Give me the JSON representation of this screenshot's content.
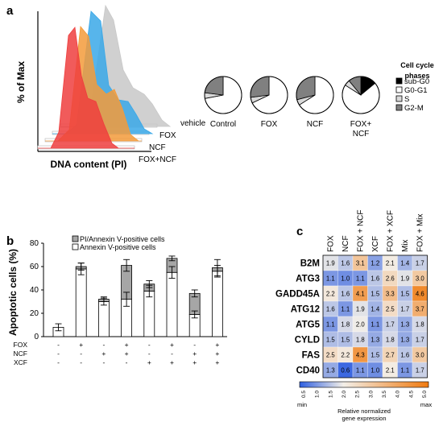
{
  "panels": {
    "a": "a",
    "b": "b",
    "c": "c"
  },
  "chart_data": [
    {
      "type": "histogram",
      "panel": "a",
      "xlabel": "DNA content (PI)",
      "ylabel": "% of Max",
      "series": [
        {
          "name": "vehicle",
          "color": "#c8c8c8"
        },
        {
          "name": "FOX",
          "color": "#3aa8e8"
        },
        {
          "name": "NCF",
          "color": "#f39b3b"
        },
        {
          "name": "FOX+NCF",
          "color": "#ee3e3e"
        }
      ]
    },
    {
      "type": "pie",
      "panel": "a",
      "legend_title": [
        "Cell cycle",
        "phases"
      ],
      "phases": [
        {
          "name": "sub-G0",
          "color": "#000000"
        },
        {
          "name": "G0-G1",
          "color": "#ffffff"
        },
        {
          "name": "S",
          "color": "#d9d9d9"
        },
        {
          "name": "G2-M",
          "color": "#808080"
        }
      ],
      "pies": [
        {
          "label": [
            "Control"
          ],
          "values": [
            0,
            72,
            5,
            23
          ]
        },
        {
          "label": [
            "FOX"
          ],
          "values": [
            0,
            68,
            5,
            27
          ]
        },
        {
          "label": [
            "NCF"
          ],
          "values": [
            0,
            66,
            5,
            29
          ]
        },
        {
          "label": [
            "FOX+",
            "NCF"
          ],
          "values": [
            14,
            70,
            5,
            11
          ]
        }
      ]
    },
    {
      "type": "bar",
      "panel": "b",
      "ylabel": "Apoptotic cells (%)",
      "ylim": [
        0,
        80
      ],
      "yticks": [
        0,
        20,
        40,
        60,
        80
      ],
      "legend": [
        "PI/Annexin V-positive cells",
        "Annexin V-positive cells"
      ],
      "series_colors": {
        "pi_annexin": "#a6a6a6",
        "annexin": "#ffffff"
      },
      "treatment_rows": [
        {
          "name": "FOX",
          "signs": [
            "-",
            "+",
            "-",
            "+",
            "-",
            "+",
            "-",
            "+"
          ]
        },
        {
          "name": "NCF",
          "signs": [
            "-",
            "-",
            "+",
            "+",
            "-",
            "-",
            "+",
            "+"
          ]
        },
        {
          "name": "XCF",
          "signs": [
            "-",
            "-",
            "-",
            "-",
            "+",
            "+",
            "+",
            "+"
          ]
        }
      ],
      "bars": [
        {
          "annexin": 8,
          "annexin_err": 3,
          "total": 8,
          "total_err": 3
        },
        {
          "annexin": 58,
          "annexin_err": 5,
          "total": 60,
          "total_err": 3
        },
        {
          "annexin": 30,
          "annexin_err": 3,
          "total": 32,
          "total_err": 2
        },
        {
          "annexin": 32,
          "annexin_err": 6,
          "total": 61,
          "total_err": 5
        },
        {
          "annexin": 39,
          "annexin_err": 5,
          "total": 45,
          "total_err": 3
        },
        {
          "annexin": 55,
          "annexin_err": 5,
          "total": 67,
          "total_err": 2
        },
        {
          "annexin": 19,
          "annexin_err": 3,
          "total": 37,
          "total_err": 3
        },
        {
          "annexin": 56,
          "annexin_err": 5,
          "total": 59,
          "total_err": 7
        }
      ]
    },
    {
      "type": "heatmap",
      "panel": "c",
      "columns": [
        "FOX",
        "NCF",
        "FOX + NCF",
        "XCF",
        "FOX + XCF",
        "Mix",
        "FOX + Mix"
      ],
      "rows": [
        "B2M",
        "ATG3",
        "GADD45A",
        "ATG12",
        "ATG5",
        "CYLD",
        "FAS",
        "CD40"
      ],
      "values": [
        [
          "1.9",
          "1.6",
          "3.1",
          "1.2",
          "2.1",
          "1.4",
          "1.7"
        ],
        [
          "1.1",
          "1.0",
          "1.1",
          "1.6",
          "2.6",
          "1.9",
          "3.0"
        ],
        [
          "2.2",
          "1.6",
          "4.1",
          "1.5",
          "3.3",
          "1.5",
          "4.6"
        ],
        [
          "1.6",
          "1.1",
          "1.9",
          "1.4",
          "2.5",
          "1.7",
          "3.7"
        ],
        [
          "1.1",
          "1.8",
          "2.0",
          "1.1",
          "1.7",
          "1.3",
          "1.8"
        ],
        [
          "1.5",
          "1.5",
          "1.8",
          "1.3",
          "1.8",
          "1.3",
          "1.7"
        ],
        [
          "2.5",
          "2.2",
          "4.3",
          "1.5",
          "2.7",
          "1.6",
          "3.0"
        ],
        [
          "1.3",
          "0.6",
          "1.1",
          "1.0",
          "2.1",
          "1.1",
          "1.7"
        ]
      ],
      "colorbar_ticks": [
        "0.5",
        "1.0",
        "1.5",
        "2.0",
        "2.5",
        "3.0",
        "3.5",
        "4.0",
        "4.5",
        "5.0"
      ],
      "colorbar_min_label": "min",
      "colorbar_max_label": "max",
      "colorbar_label": [
        "Relative normalized",
        "gene expression"
      ],
      "colors": {
        "low": "#2f5fe0",
        "mid": "#f3efe8",
        "high": "#f07a10"
      }
    }
  ]
}
